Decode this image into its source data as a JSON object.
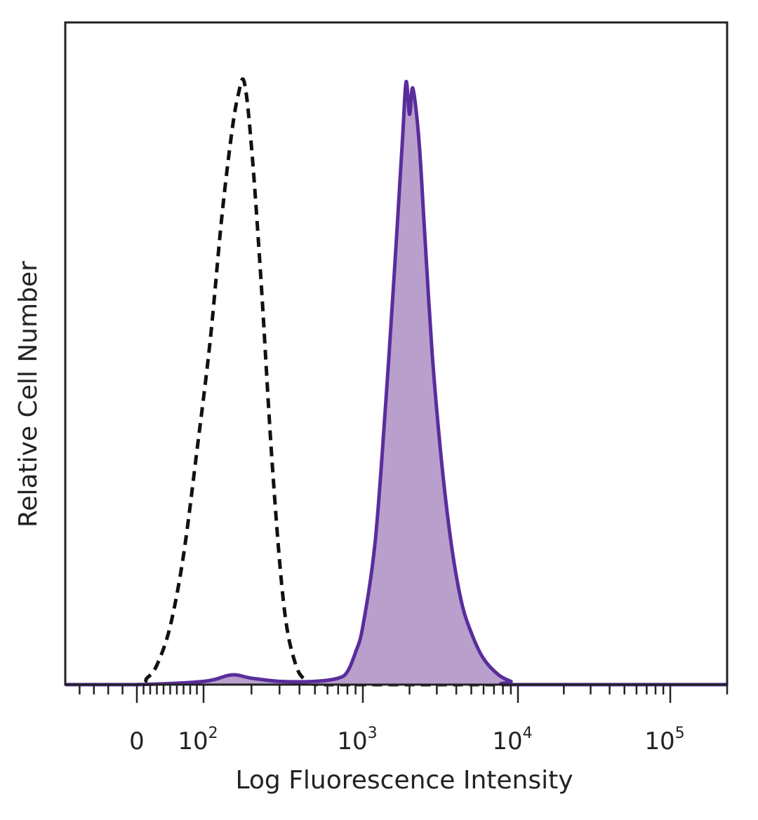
{
  "chart_data": {
    "type": "area",
    "xlabel": "Log Fluorescence Intensity",
    "ylabel": "Relative Cell Number",
    "x_scale": "biexponential",
    "xlim": [
      -50,
      200000
    ],
    "ylim": [
      0,
      100
    ],
    "grid": false,
    "legend": "none",
    "x_ticks": [
      {
        "value": 0,
        "base": "0",
        "exp": ""
      },
      {
        "value": 100,
        "base": "10",
        "exp": "2"
      },
      {
        "value": 1000,
        "base": "10",
        "exp": "3"
      },
      {
        "value": 10000,
        "base": "10",
        "exp": "4"
      },
      {
        "value": 100000,
        "base": "10",
        "exp": "5"
      }
    ],
    "series": [
      {
        "style": "dashed-outline",
        "color": "#111111",
        "x": [
          -50,
          0,
          15,
          30,
          50,
          70,
          90,
          110,
          130,
          150,
          165,
          180,
          200,
          230,
          270,
          320,
          380,
          450,
          520,
          600,
          700,
          1000,
          10000,
          200000
        ],
        "y": [
          0,
          0,
          1,
          3,
          9,
          20,
          36,
          53,
          72,
          85,
          91,
          93,
          83,
          62,
          34,
          12,
          3,
          0.5,
          0,
          0,
          0,
          0,
          0,
          0
        ]
      },
      {
        "style": "filled",
        "color": "#5a2d9c",
        "fill": "#b9a0cc",
        "x": [
          -50,
          0,
          100,
          150,
          200,
          300,
          500,
          700,
          800,
          900,
          1000,
          1200,
          1400,
          1600,
          1800,
          1900,
          2000,
          2100,
          2300,
          2500,
          2800,
          3200,
          3700,
          4300,
          5000,
          6000,
          7500,
          9000,
          10000,
          200000
        ],
        "y": [
          0,
          0,
          0.5,
          1.5,
          1,
          0.5,
          0.5,
          1,
          2,
          5,
          9,
          22,
          43,
          64,
          84,
          93,
          88,
          92,
          84,
          70,
          51,
          35,
          22,
          13,
          8,
          4,
          1.5,
          0.5,
          0,
          0
        ]
      }
    ]
  }
}
